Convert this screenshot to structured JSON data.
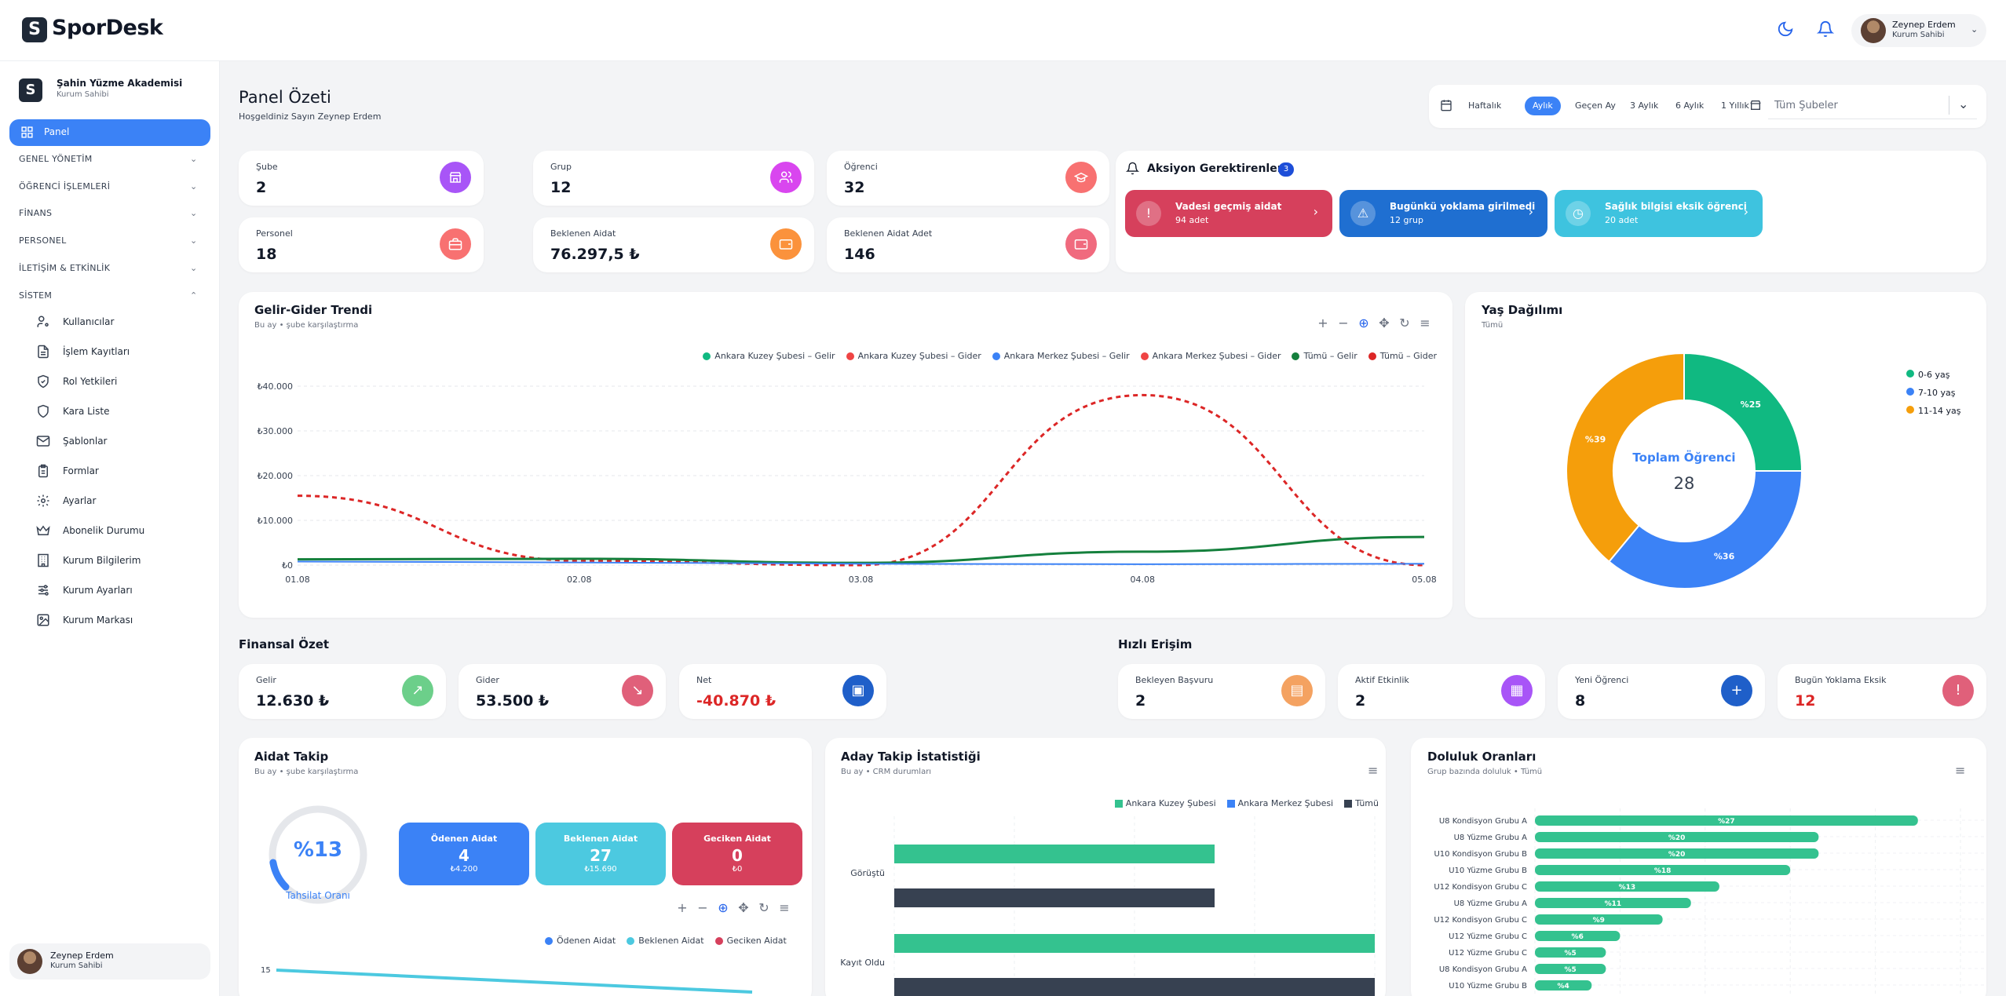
{
  "app": {
    "name": "SporDesk",
    "logo_letter": "S"
  },
  "user": {
    "name": "Zeynep Erdem",
    "role": "Kurum Sahibi"
  },
  "org": {
    "name": "Şahin Yüzme Akademisi",
    "role": "Kurum Sahibi",
    "letter": "S"
  },
  "nav": {
    "active": "Panel",
    "sections": [
      "GENEL YÖNETİM",
      "ÖĞRENCİ İŞLEMLERİ",
      "FİNANS",
      "PERSONEL",
      "İLETİŞİM & ETKİNLİK",
      "SİSTEM"
    ],
    "system_items": [
      "Kullanıcılar",
      "İşlem Kayıtları",
      "Rol Yetkileri",
      "Kara Liste",
      "Şablonlar",
      "Formlar",
      "Ayarlar",
      "Abonelik Durumu",
      "Kurum Bilgilerim",
      "Kurum Ayarları",
      "Kurum Markası"
    ]
  },
  "page": {
    "title": "Panel Özeti",
    "subtitle": "Hoşgeldiniz Sayın Zeynep Erdem"
  },
  "filters": {
    "periods": [
      "Haftalık",
      "Aylık",
      "Geçen Ay",
      "3 Aylık",
      "6 Aylık",
      "1 Yıllık"
    ],
    "active_period": "Aylık",
    "branch": "Tüm Şubeler"
  },
  "stats": [
    {
      "label": "Şube",
      "value": "2",
      "icon": "store-icon",
      "color": "#a855f7"
    },
    {
      "label": "Grup",
      "value": "12",
      "icon": "users-icon",
      "color": "#d946ef"
    },
    {
      "label": "Öğrenci",
      "value": "32",
      "icon": "graduation-cap-icon",
      "color": "#f87171"
    },
    {
      "label": "Personel",
      "value": "18",
      "icon": "briefcase-icon",
      "color": "#f87171"
    },
    {
      "label": "Beklenen Aidat",
      "value": "76.297,5 ₺",
      "icon": "wallet-icon",
      "color": "#fb923c"
    },
    {
      "label": "Beklenen Aidat Adet",
      "value": "146",
      "icon": "wallet-icon",
      "color": "#f06a7e"
    }
  ],
  "actions": {
    "title": "Aksiyon Gerektirenler",
    "count": "3",
    "items": [
      {
        "title": "Vadesi geçmiş aidat",
        "sub": "94 adet",
        "color": "#d6405c",
        "icon": "alert-circle-icon"
      },
      {
        "title": "Bugünkü yoklama girilmedi",
        "sub": "12 grup",
        "color": "#1f6fd1",
        "icon": "alert-triangle-icon"
      },
      {
        "title": "Sağlık bilgisi eksik öğrenci",
        "sub": "20 adet",
        "color": "#3ec3df",
        "icon": "clock-icon"
      }
    ]
  },
  "trend": {
    "title": "Gelir-Gider Trendi",
    "subtitle": "Bu ay • şube karşılaştırma",
    "legend": [
      {
        "name": "Ankara Kuzey Şubesi – Gelir",
        "color": "#10b981"
      },
      {
        "name": "Ankara Kuzey Şubesi – Gider",
        "color": "#ef4444"
      },
      {
        "name": "Ankara Merkez Şubesi – Gelir",
        "color": "#3b82f6"
      },
      {
        "name": "Ankara Merkez Şubesi – Gider",
        "color": "#ef4444"
      },
      {
        "name": "Tümü – Gelir",
        "color": "#15803d"
      },
      {
        "name": "Tümü – Gider",
        "color": "#dc2626"
      }
    ]
  },
  "chart_data": [
    {
      "type": "line",
      "title": "Gelir-Gider Trendi",
      "x": [
        "01.08",
        "02.08",
        "03.08",
        "04.08",
        "05.08"
      ],
      "y_ticks": [
        "₺40.000",
        "₺30.000",
        "₺20.000",
        "₺10.000",
        "₺0"
      ],
      "ylim": [
        0,
        40000
      ],
      "series": [
        {
          "name": "Tümü – Gider",
          "values": [
            15500,
            1000,
            0,
            38000,
            0
          ]
        },
        {
          "name": "Tümü – Gelir",
          "values": [
            1300,
            1400,
            500,
            3000,
            6300
          ]
        },
        {
          "name": "Ankara Merkez Şubesi – Gelir",
          "values": [
            800,
            600,
            300,
            200,
            300
          ]
        }
      ]
    },
    {
      "type": "pie",
      "title": "Yaş Dağılımı",
      "subtitle": "Tümü",
      "center_label": "Toplam Öğrenci",
      "center_value": "28",
      "slices": [
        {
          "name": "0-6 yaş",
          "value": 25,
          "label": "%25",
          "color": "#10b981"
        },
        {
          "name": "7-10 yaş",
          "value": 36,
          "label": "%36",
          "color": "#3b82f6"
        },
        {
          "name": "11-14 yaş",
          "value": 39,
          "label": "%39",
          "color": "#f59e0b"
        }
      ]
    },
    {
      "type": "bar",
      "title": "Aday Takip İstatistiği",
      "subtitle": "Bu ay • CRM durumları",
      "categories": [
        "Görüştü",
        "Kayıt Oldu"
      ],
      "series": [
        {
          "name": "Ankara Kuzey Şubesi",
          "color": "#34c28f",
          "values": [
            8,
            12
          ]
        },
        {
          "name": "Ankara Merkez Şubesi",
          "color": "#3b82f6",
          "values": [
            0,
            0
          ]
        },
        {
          "name": "Tümü",
          "color": "#374151",
          "values": [
            8,
            12
          ]
        }
      ],
      "xlim": [
        0,
        12
      ]
    },
    {
      "type": "bar",
      "title": "Doluluk Oranları",
      "subtitle": "Grup bazında doluluk • Tümü",
      "categories": [
        "U8 Kondisyon Grubu A",
        "U8 Yüzme Grubu A",
        "U10 Kondisyon Grubu B",
        "U10 Yüzme Grubu B",
        "U12 Kondisyon Grubu C",
        "U8 Yüzme Grubu A",
        "U12 Kondisyon Grubu C",
        "U12 Yüzme Grubu C",
        "U12 Yüzme Grubu C",
        "U8 Kondisyon Grubu A",
        "U10 Yüzme Grubu B"
      ],
      "values": [
        27,
        20,
        20,
        18,
        13,
        11,
        9,
        6,
        5,
        5,
        4
      ],
      "labels": [
        "%27",
        "%20",
        "%20",
        "%18",
        "%13",
        "%11",
        "%9",
        "%6",
        "%5",
        "%5",
        "%4"
      ]
    }
  ],
  "age": {
    "title": "Yaş Dağılımı",
    "subtitle": "Tümü",
    "center_label": "Toplam Öğrenci",
    "center_value": "28"
  },
  "finance": {
    "title": "Finansal Özet",
    "items": [
      {
        "label": "Gelir",
        "value": "12.630 ₺",
        "color": "#6ccf8a",
        "icon": "trending-up-icon",
        "neg": false
      },
      {
        "label": "Gider",
        "value": "53.500 ₺",
        "color": "#e0607a",
        "icon": "trending-down-icon",
        "neg": false
      },
      {
        "label": "Net",
        "value": "-40.870 ₺",
        "color": "#1f5fc9",
        "icon": "wallet-icon",
        "neg": true
      }
    ]
  },
  "quick": {
    "title": "Hızlı Erişim",
    "items": [
      {
        "label": "Bekleyen Başvuru",
        "value": "2",
        "color": "#f4a261",
        "icon": "document-icon",
        "neg": false
      },
      {
        "label": "Aktif Etkinlik",
        "value": "2",
        "color": "#a855f7",
        "icon": "calendar-icon",
        "neg": false
      },
      {
        "label": "Yeni Öğrenci",
        "value": "8",
        "color": "#1f5fc9",
        "icon": "user-plus-icon",
        "neg": false
      },
      {
        "label": "Bugün Yoklama Eksik",
        "value": "12",
        "color": "#e0607a",
        "icon": "alert-circle-icon",
        "neg": true
      }
    ]
  },
  "dues": {
    "title": "Aidat Takip",
    "subtitle": "Bu ay • şube karşılaştırma",
    "gauge_value": "%13",
    "gauge_fraction": 0.13,
    "gauge_label": "Tahsilat Oranı",
    "cards": [
      {
        "label": "Ödenen Aidat",
        "value": "4",
        "sub": "₺4.200",
        "color": "#3b82f6"
      },
      {
        "label": "Beklenen Aidat",
        "value": "27",
        "sub": "₺15.690",
        "color": "#4cc9e0"
      },
      {
        "label": "Geciken Aidat",
        "value": "0",
        "sub": "₺0",
        "color": "#d6405c"
      }
    ],
    "legend": [
      {
        "name": "Ödenen Aidat",
        "color": "#3b82f6"
      },
      {
        "name": "Beklenen Aidat",
        "color": "#4cc9e0"
      },
      {
        "name": "Geciken Aidat",
        "color": "#d6405c"
      }
    ],
    "y_tick": "15"
  },
  "lead": {
    "title": "Aday Takip İstatistiği",
    "subtitle": "Bu ay • CRM durumları"
  },
  "fill": {
    "title": "Doluluk Oranları",
    "subtitle": "Grup bazında doluluk • Tümü"
  }
}
